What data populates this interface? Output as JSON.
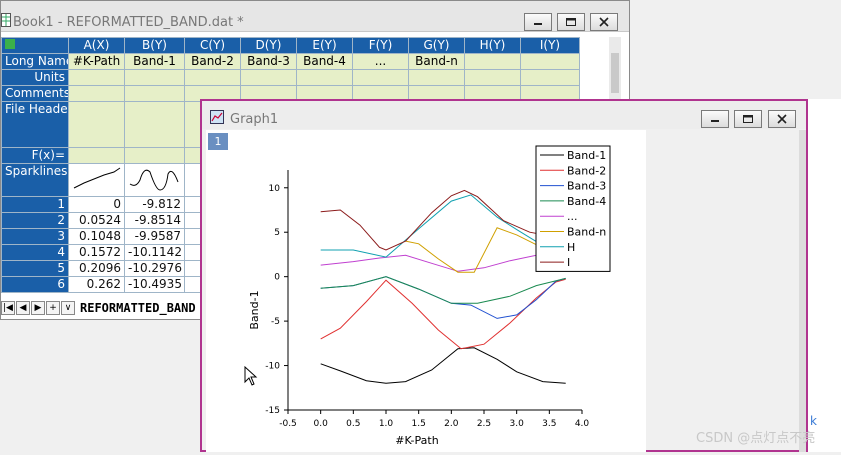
{
  "book": {
    "title": "Book1 - REFORMATTED_BAND.dat *",
    "columns": [
      "A(X)",
      "B(Y)",
      "C(Y)",
      "D(Y)",
      "E(Y)",
      "F(Y)",
      "G(Y)",
      "H(Y)",
      "I(Y)"
    ],
    "row_labels": [
      "Long Name",
      "Units",
      "Comments",
      "File Header",
      "F(x)=",
      "Sparklines"
    ],
    "long_names": [
      "#K-Path",
      "Band-1",
      "Band-2",
      "Band-3",
      "Band-4",
      "...",
      "Band-n",
      "",
      ""
    ],
    "rows": [
      {
        "index": "1",
        "a": "0",
        "b": "-9.812"
      },
      {
        "index": "2",
        "a": "0.0524",
        "b": "-9.8514"
      },
      {
        "index": "3",
        "a": "0.1048",
        "b": "-9.9587"
      },
      {
        "index": "4",
        "a": "0.1572",
        "b": "-10.1142"
      },
      {
        "index": "5",
        "a": "0.2096",
        "b": "-10.2976"
      },
      {
        "index": "6",
        "a": "0.262",
        "b": "-10.4935"
      }
    ],
    "sheet_tab": "REFORMATTED_BAND"
  },
  "graph": {
    "title": "Graph1",
    "layer": "1"
  },
  "chart_data": {
    "type": "line",
    "title": "",
    "xlabel": "#K-Path",
    "ylabel": "Band-1",
    "xlim": [
      -0.5,
      4.0
    ],
    "ylim": [
      -15,
      12
    ],
    "xticks": [
      "-0.5",
      "0.0",
      "0.5",
      "1.0",
      "1.5",
      "2.0",
      "2.5",
      "3.0",
      "3.5",
      "4.0"
    ],
    "yticks": [
      "10",
      "5",
      "0",
      "-5",
      "-10",
      "-15"
    ],
    "legend_position": "top-right",
    "series": [
      {
        "name": "Band-1",
        "color": "#000000",
        "x": [
          0.0,
          0.3,
          0.7,
          1.0,
          1.3,
          1.7,
          2.1,
          2.35,
          2.7,
          3.0,
          3.4,
          3.75
        ],
        "y": [
          -9.8,
          -10.6,
          -11.7,
          -12.0,
          -11.8,
          -10.5,
          -8.1,
          -8.0,
          -9.3,
          -10.7,
          -11.8,
          -12.0
        ]
      },
      {
        "name": "Band-2",
        "color": "#e03030",
        "x": [
          0.0,
          0.3,
          0.7,
          1.0,
          1.4,
          1.8,
          2.15,
          2.5,
          2.9,
          3.3,
          3.6,
          3.75
        ],
        "y": [
          -7.0,
          -5.8,
          -2.8,
          -0.4,
          -3.0,
          -6.0,
          -8.1,
          -7.6,
          -5.2,
          -2.4,
          -0.6,
          -0.3
        ]
      },
      {
        "name": "Band-3",
        "color": "#2050d0",
        "x": [
          0.0,
          0.5,
          1.0,
          1.5,
          2.0,
          2.3,
          2.7,
          3.0,
          3.3,
          3.6,
          3.75
        ],
        "y": [
          -1.3,
          -1.0,
          0.0,
          -1.4,
          -3.0,
          -3.2,
          -4.7,
          -4.3,
          -2.6,
          -0.5,
          -0.2
        ]
      },
      {
        "name": "Band-4",
        "color": "#1a8a50",
        "x": [
          0.0,
          0.5,
          1.0,
          1.5,
          2.0,
          2.4,
          2.9,
          3.3,
          3.75
        ],
        "y": [
          -1.3,
          -1.0,
          0.0,
          -1.4,
          -3.0,
          -3.0,
          -2.2,
          -1.0,
          -0.2
        ]
      },
      {
        "name": "...",
        "color": "#c040d0",
        "x": [
          0.0,
          0.5,
          0.9,
          1.3,
          1.7,
          2.1,
          2.5,
          2.9,
          3.3,
          3.75
        ],
        "y": [
          1.3,
          1.7,
          2.1,
          2.4,
          1.5,
          0.6,
          1.0,
          1.8,
          2.4,
          2.2
        ]
      },
      {
        "name": "Band-n",
        "color": "#d0a000",
        "x": [
          1.3,
          1.5,
          1.8,
          2.1,
          2.35,
          2.7,
          3.0,
          3.3,
          3.6,
          3.75
        ],
        "y": [
          4.0,
          3.7,
          2.0,
          0.5,
          0.5,
          5.5,
          4.7,
          3.6,
          2.5,
          2.2
        ]
      },
      {
        "name": "H",
        "color": "#10a0b0",
        "x": [
          0.0,
          0.5,
          1.0,
          1.5,
          2.0,
          2.3,
          2.7,
          3.0,
          3.4,
          3.75
        ],
        "y": [
          3.0,
          3.0,
          2.2,
          5.4,
          8.5,
          9.2,
          6.7,
          5.3,
          3.5,
          2.2
        ]
      },
      {
        "name": "I",
        "color": "#8b1a1a",
        "x": [
          0.0,
          0.3,
          0.6,
          0.9,
          1.0,
          1.3,
          1.7,
          2.0,
          2.2,
          2.4,
          2.8,
          3.2,
          3.5,
          3.75
        ],
        "y": [
          7.3,
          7.5,
          5.8,
          3.3,
          3.0,
          4.0,
          7.2,
          9.1,
          9.7,
          9.0,
          6.3,
          5.0,
          4.6,
          2.0
        ]
      }
    ]
  },
  "watermark": "CSDN @点灯点不亮",
  "back_link": "k",
  "icons": {
    "book": "worksheet-icon",
    "graph": "graph-icon",
    "minimize": "minimize-icon",
    "restore": "restore-icon",
    "close": "close-icon",
    "cursor": "mouse-pointer-icon"
  }
}
